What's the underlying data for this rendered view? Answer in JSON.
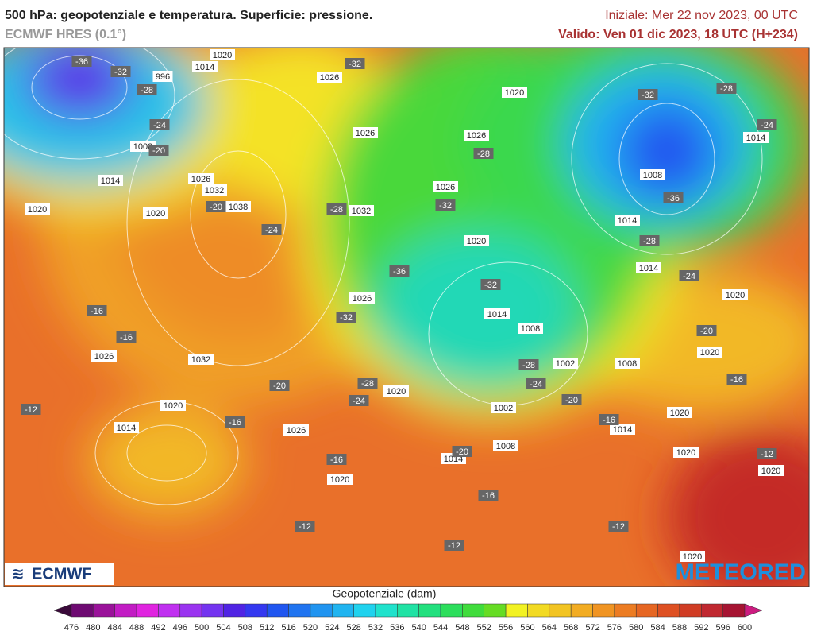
{
  "header": {
    "title": "500 hPa: geopotenziale e temperatura. Superficie: pressione.",
    "model": "ECMWF HRES (0.1°)",
    "initial": "Iniziale: Mer 22 nov 2023, 00 UTC",
    "valid": "Valido: Ven 01 dic 2023, 18 UTC (H+234)"
  },
  "logos": {
    "left": "ECMWF",
    "right": "METEORED"
  },
  "map": {
    "pressure_labels": [
      "1020",
      "1014",
      "996",
      "1026",
      "1020",
      "1026",
      "1026",
      "1014",
      "1008",
      "1014",
      "1026",
      "1032",
      "1038",
      "1032",
      "1026",
      "1008",
      "1020",
      "1020",
      "1014",
      "1020",
      "1014",
      "1026",
      "1020",
      "1014",
      "1008",
      "1020",
      "1026",
      "1032",
      "1002",
      "1008",
      "1020",
      "1020",
      "1014",
      "1026",
      "1002",
      "1020",
      "1014",
      "1008",
      "1014",
      "1020",
      "1020",
      "1020",
      "1020"
    ],
    "temperature_labels": [
      "-36",
      "-32",
      "-28",
      "-24",
      "-20",
      "-32",
      "-32",
      "-28",
      "-24",
      "-28",
      "-32",
      "-20",
      "-24",
      "-28",
      "-36",
      "-28",
      "-36",
      "-32",
      "-24",
      "-32",
      "-16",
      "-16",
      "-20",
      "-28",
      "-24",
      "-28",
      "-24",
      "-20",
      "-20",
      "-16",
      "-12",
      "-16",
      "-16",
      "-20",
      "-16",
      "-12",
      "-16",
      "-12",
      "-12",
      "-12"
    ]
  },
  "colorbar": {
    "label": "Geopotenziale (dam)",
    "ticks": [
      476,
      480,
      484,
      488,
      492,
      496,
      500,
      504,
      508,
      512,
      516,
      520,
      524,
      528,
      532,
      536,
      540,
      544,
      548,
      552,
      556,
      560,
      564,
      568,
      572,
      576,
      580,
      584,
      588,
      592,
      596,
      600
    ],
    "colors": [
      "#3a0a3a",
      "#6e0a72",
      "#9a129a",
      "#c21cc4",
      "#e024e0",
      "#c030f0",
      "#9a34f0",
      "#7434f0",
      "#5024e4",
      "#3438f0",
      "#2056f0",
      "#2074f0",
      "#2094f0",
      "#20b4f0",
      "#20d2ee",
      "#20e2cc",
      "#20e2a4",
      "#22e07e",
      "#2cde5c",
      "#40dc3c",
      "#66dc24",
      "#f2f222",
      "#f2da22",
      "#f2c422",
      "#f2ac22",
      "#f09422",
      "#ec7c22",
      "#e66622",
      "#de5022",
      "#d03c24",
      "#c02830",
      "#a61432",
      "#cc1c80"
    ]
  }
}
